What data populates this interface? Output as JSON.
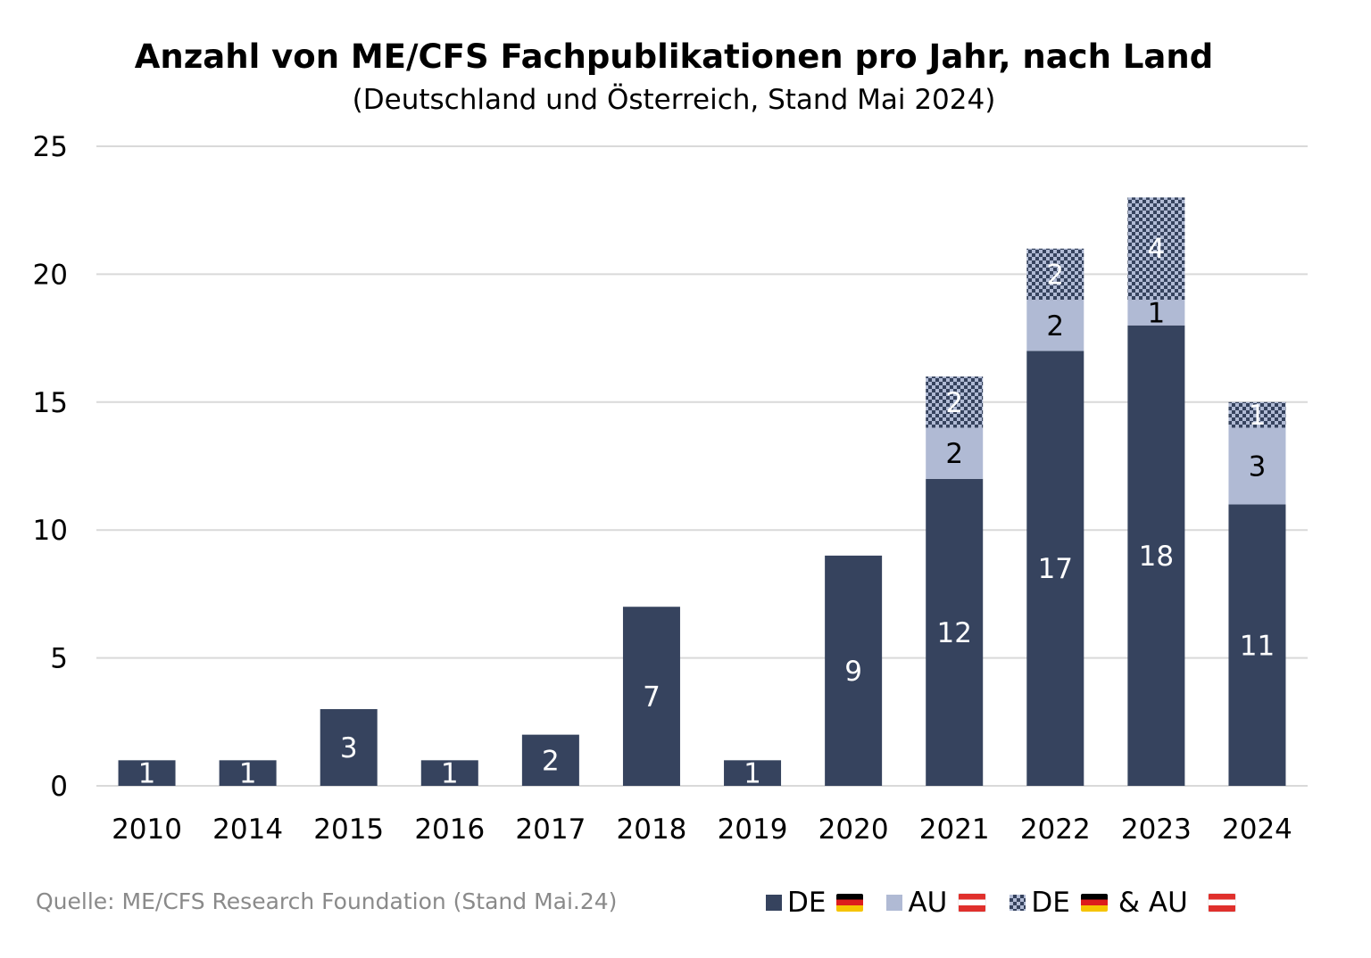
{
  "chart_data": {
    "type": "bar",
    "stacked": true,
    "title": "Anzahl von ME/CFS Fachpublikationen pro Jahr, nach Land",
    "subtitle": "(Deutschland und Österreich, Stand Mai 2024)",
    "categories": [
      "2010",
      "2014",
      "2015",
      "2016",
      "2017",
      "2018",
      "2019",
      "2020",
      "2021",
      "2022",
      "2023",
      "2024"
    ],
    "series": [
      {
        "name": "DE",
        "color": "#36435e",
        "values": [
          1,
          1,
          3,
          1,
          2,
          7,
          1,
          9,
          12,
          17,
          18,
          11
        ]
      },
      {
        "name": "AU",
        "color": "#b0bad4",
        "values": [
          0,
          0,
          0,
          0,
          0,
          0,
          0,
          0,
          2,
          2,
          1,
          3
        ]
      },
      {
        "name": "DE & AU",
        "color": "#36435e",
        "pattern": "checkerboard",
        "values": [
          0,
          0,
          0,
          0,
          0,
          0,
          0,
          0,
          2,
          2,
          4,
          1
        ]
      }
    ],
    "ylim": [
      0,
      25
    ],
    "yticks": [
      0,
      5,
      10,
      15,
      20,
      25
    ],
    "grid": true,
    "legend_position": "bottom-right",
    "source": "Quelle: ME/CFS Research Foundation (Stand Mai.24)"
  },
  "legend": [
    {
      "label": "DE",
      "flag": "germany-flag"
    },
    {
      "label": "AU",
      "flag": "austria-flag"
    },
    {
      "label": "DE",
      "flag": "germany-flag",
      "label2": "& AU",
      "flag2": "austria-flag"
    }
  ]
}
